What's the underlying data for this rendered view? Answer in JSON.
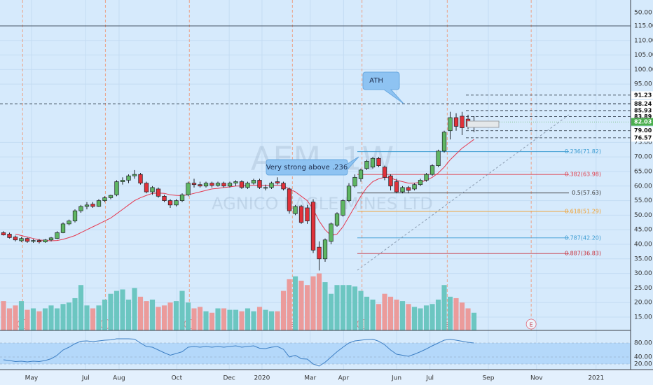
{
  "chart_data": {
    "type": "candlestick",
    "watermark_symbol": "AEM, 1W",
    "watermark_name": "AGNICO EAGLE MINES LTD",
    "up_color": "#5fb663",
    "down_color": "#e0313a",
    "volume_up_color": "#6cc6c1",
    "volume_down_color": "#eb9b9b",
    "ma_color": "#e53950",
    "rsi_color": "#3d7fc4",
    "xlim": [
      -0.588,
      105.29
    ],
    "xticks": [
      {
        "value": 4.7,
        "label": "May"
      },
      {
        "value": 13.8,
        "label": "Jul"
      },
      {
        "value": 19.4,
        "label": "Aug"
      },
      {
        "value": 29.1,
        "label": "Oct"
      },
      {
        "value": 37.9,
        "label": "Dec"
      },
      {
        "value": 43.4,
        "label": "2020"
      },
      {
        "value": 51.5,
        "label": "Mar"
      },
      {
        "value": 57.1,
        "label": "Apr"
      },
      {
        "value": 66.0,
        "label": "Jun"
      },
      {
        "value": 71.6,
        "label": "Jul"
      },
      {
        "value": 81.4,
        "label": "Sep"
      },
      {
        "value": 89.5,
        "label": "Nov"
      },
      {
        "value": 99.5,
        "label": "2021"
      }
    ],
    "ylim": [
      10.43,
      123.89
    ],
    "yticks": [
      {
        "value": 115,
        "label": "115.00"
      },
      {
        "value": 110,
        "label": "110.00"
      },
      {
        "value": 105,
        "label": "105.00"
      },
      {
        "value": 100,
        "label": "100.00"
      },
      {
        "value": 95,
        "label": "95.00"
      },
      {
        "value": 75,
        "label": "75.00"
      },
      {
        "value": 70,
        "label": "70.00"
      },
      {
        "value": 65,
        "label": "65.00"
      },
      {
        "value": 60,
        "label": "60.00"
      },
      {
        "value": 55,
        "label": "55.00"
      },
      {
        "value": 50,
        "label": "50.00"
      },
      {
        "value": 45,
        "label": "45.00"
      },
      {
        "value": 40,
        "label": "40.00"
      },
      {
        "value": 35,
        "label": "35.00"
      },
      {
        "value": 30,
        "label": "30.00"
      },
      {
        "value": 25,
        "label": "25.00"
      },
      {
        "value": 20,
        "label": "20.00"
      },
      {
        "value": 15,
        "label": "15.00"
      }
    ],
    "top_scale_label": "50.00",
    "grid": true,
    "ohlc": [
      [
        44,
        44.5,
        43,
        43.2
      ],
      [
        43.5,
        44,
        42,
        42.3
      ],
      [
        42.5,
        43,
        41,
        41.5
      ],
      [
        41.2,
        42.5,
        40.8,
        42
      ],
      [
        42,
        42.3,
        40.5,
        41
      ],
      [
        41,
        41.8,
        40.5,
        41.3
      ],
      [
        41.3,
        41.8,
        40.3,
        40.8
      ],
      [
        40.8,
        41.8,
        40.5,
        41.5
      ],
      [
        41.5,
        42.5,
        41,
        42.2
      ],
      [
        42,
        44.5,
        41.8,
        44
      ],
      [
        44,
        47.5,
        43.8,
        47
      ],
      [
        47,
        48.5,
        46.5,
        48
      ],
      [
        48,
        52,
        47.5,
        51.5
      ],
      [
        51.5,
        53.5,
        50.8,
        53
      ],
      [
        53,
        54.5,
        52,
        53.5
      ],
      [
        53.8,
        54.5,
        52.5,
        53
      ],
      [
        53,
        55.5,
        52.8,
        55
      ],
      [
        55,
        56.5,
        54.5,
        56
      ],
      [
        56,
        57,
        55.5,
        56.8
      ],
      [
        57,
        62,
        56.5,
        61.5
      ],
      [
        61.5,
        63,
        60.5,
        62
      ],
      [
        62,
        64,
        61,
        63.5
      ],
      [
        63.5,
        65.5,
        62.5,
        64
      ],
      [
        64,
        64.5,
        60.5,
        61
      ],
      [
        61,
        61.5,
        57.5,
        58
      ],
      [
        58,
        60,
        57,
        59.5
      ],
      [
        59,
        59.5,
        56,
        56.5
      ],
      [
        56.5,
        57,
        54.5,
        55
      ],
      [
        55,
        55.5,
        52.5,
        53.5
      ],
      [
        53.5,
        55.5,
        53,
        55
      ],
      [
        55,
        57.5,
        54.5,
        57
      ],
      [
        57,
        61.5,
        56.5,
        61
      ],
      [
        61,
        62.5,
        59.5,
        60.5
      ],
      [
        60.5,
        61.5,
        59.5,
        60
      ],
      [
        60,
        61.5,
        59.5,
        61
      ],
      [
        61,
        61.5,
        59.5,
        60.2
      ],
      [
        60.2,
        61.5,
        59.8,
        61
      ],
      [
        61,
        61.5,
        59.5,
        60
      ],
      [
        60,
        61.5,
        59.5,
        61
      ],
      [
        61,
        62,
        60,
        61.5
      ],
      [
        61.5,
        62,
        59,
        59.5
      ],
      [
        59.5,
        61.5,
        59,
        61
      ],
      [
        61,
        62.5,
        60.5,
        62
      ],
      [
        62,
        62.5,
        59,
        59.5
      ],
      [
        59.5,
        60.5,
        58.5,
        59.5
      ],
      [
        59.5,
        61.5,
        59,
        61
      ],
      [
        61.5,
        63,
        60.5,
        61
      ],
      [
        61,
        61.5,
        58.5,
        59
      ],
      [
        59,
        59.5,
        50.5,
        51.5
      ],
      [
        50.5,
        53.5,
        50,
        53
      ],
      [
        53,
        53.5,
        47,
        47.5
      ],
      [
        52.5,
        53.5,
        47,
        48
      ],
      [
        54.5,
        55.5,
        37,
        38
      ],
      [
        39,
        41,
        31,
        35
      ],
      [
        35,
        42,
        34,
        41.5
      ],
      [
        41,
        47.5,
        40,
        47
      ],
      [
        46.5,
        51,
        46,
        50.5
      ],
      [
        50,
        55.5,
        49.5,
        55
      ],
      [
        55,
        61,
        54.5,
        60
      ],
      [
        60,
        64,
        59.5,
        63
      ],
      [
        62.5,
        66,
        61.5,
        65.5
      ],
      [
        66,
        69,
        65.5,
        68.5
      ],
      [
        66.5,
        70,
        66,
        69.5
      ],
      [
        69.5,
        70,
        66.5,
        67
      ],
      [
        66.5,
        67,
        62,
        63
      ],
      [
        63.5,
        64,
        58.5,
        60
      ],
      [
        61.5,
        62.5,
        57.5,
        58
      ],
      [
        58,
        60,
        57.5,
        59.5
      ],
      [
        59.5,
        60,
        57.5,
        58.5
      ],
      [
        59,
        61,
        58.5,
        60.5
      ],
      [
        60.5,
        62.5,
        60,
        62
      ],
      [
        62,
        64.5,
        61.5,
        64
      ],
      [
        64,
        67.5,
        63.5,
        67
      ],
      [
        67,
        72.5,
        66.5,
        72
      ],
      [
        72,
        79,
        71.5,
        78.5
      ],
      [
        79,
        85.5,
        76,
        83.5
      ],
      [
        83.5,
        85,
        79,
        80.5
      ],
      [
        84,
        85.5,
        77.5,
        80
      ],
      [
        83,
        84.5,
        79.5,
        80.5
      ],
      [
        80.5,
        84,
        78.5,
        82.03
      ]
    ],
    "volume": [
      20.5,
      18,
      19,
      20.5,
      17.5,
      18,
      17,
      18,
      19,
      18,
      19.5,
      20,
      21.5,
      26,
      19,
      18,
      19,
      21,
      23,
      24,
      24.5,
      21,
      25,
      22,
      20.5,
      21,
      18.5,
      19,
      20,
      20.5,
      24,
      20,
      18,
      18.5,
      17,
      16.5,
      18,
      18,
      17.5,
      17.5,
      17,
      18,
      17,
      18.5,
      17.5,
      17,
      17,
      24,
      28,
      29,
      27.5,
      26,
      29,
      30,
      27,
      23,
      26,
      26,
      26,
      25.5,
      24,
      22,
      21,
      19.5,
      23,
      22,
      21,
      20.5,
      19.5,
      18.5,
      18,
      19,
      19.5,
      21,
      26,
      22,
      21.5,
      20,
      18,
      16.5
    ],
    "ma": [
      null,
      null,
      43.5,
      43,
      42.5,
      42,
      41.5,
      41.3,
      41.2,
      41.3,
      41.7,
      42.3,
      43,
      44,
      45,
      46,
      47,
      48,
      49,
      50.5,
      52,
      53.5,
      55,
      56,
      56.8,
      57.5,
      57.6,
      57.5,
      57,
      56.8,
      56.7,
      57,
      57.5,
      58,
      58.5,
      59,
      59.2,
      59.5,
      59.7,
      60,
      60,
      60.2,
      60.3,
      60.3,
      60.2,
      60.2,
      60.3,
      60.1,
      59,
      58,
      56.5,
      55,
      52,
      48,
      45,
      43,
      43.5,
      46,
      49.5,
      53,
      56.5,
      59.5,
      61.5,
      62.5,
      63,
      62.8,
      62,
      61.5,
      61,
      61,
      61.3,
      62,
      63,
      64.5,
      66.5,
      69,
      71,
      73,
      74.5,
      76
    ],
    "fib_levels": [
      {
        "level": 71.82,
        "label": "0.236(71.82)",
        "color": "#3b9bd1"
      },
      {
        "level": 63.98,
        "label": "0.382(63.98)",
        "color": "#e0414f"
      },
      {
        "level": 57.63,
        "label": "0.5(57.63)",
        "color": "#333333"
      },
      {
        "level": 51.29,
        "label": "0.618(51.29)",
        "color": "#f0a030"
      },
      {
        "level": 42.2,
        "label": "0.787(42.20)",
        "color": "#3b9bd1"
      },
      {
        "level": 36.83,
        "label": "0.887(36.83)",
        "color": "#c8323c"
      }
    ],
    "full_lines": [
      {
        "value": 115,
        "label": "115.00",
        "dash": false
      },
      {
        "value": 88.24,
        "label": "88.24",
        "dash": true
      }
    ],
    "price_labels": [
      91.23,
      88.24,
      85.93,
      83.89,
      {
        "value": 79.0,
        "label": "79.00"
      },
      76.57
    ],
    "last_price": {
      "value": 82.03,
      "label": "82.03",
      "color": "#4caf50"
    },
    "events": [
      {
        "x": 3.2,
        "label": "E"
      },
      {
        "x": 17.1,
        "label": "E"
      },
      {
        "x": 31.2,
        "label": "E"
      },
      {
        "x": 48.5,
        "label": "E"
      },
      {
        "x": 60.2,
        "label": "E"
      },
      {
        "x": 74.5,
        "label": "E"
      },
      {
        "x": 88.6,
        "label": "E"
      }
    ],
    "annotations": {
      "ath": "ATH",
      "note": "Very strong above .236"
    },
    "rsi": {
      "ylim": [
        4,
        112
      ],
      "yticks": [
        {
          "value": 80,
          "label": "80.00"
        },
        {
          "value": 40,
          "label": "40.00"
        },
        {
          "value": 20,
          "label": "20.00"
        }
      ],
      "band": [
        20,
        80
      ],
      "values": [
        32,
        30,
        27,
        28,
        26,
        28,
        27,
        30,
        35,
        45,
        60,
        68,
        78,
        85,
        86,
        84,
        86,
        88,
        89,
        92,
        92,
        92,
        91,
        80,
        70,
        68,
        60,
        52,
        45,
        50,
        55,
        68,
        70,
        68,
        70,
        68,
        70,
        68,
        70,
        72,
        68,
        70,
        72,
        65,
        64,
        68,
        70,
        62,
        40,
        45,
        35,
        34,
        20,
        14,
        25,
        40,
        55,
        68,
        80,
        86,
        88,
        90,
        91,
        85,
        75,
        60,
        48,
        45,
        42,
        48,
        55,
        63,
        72,
        80,
        88,
        91,
        88,
        85,
        82,
        80
      ]
    }
  }
}
